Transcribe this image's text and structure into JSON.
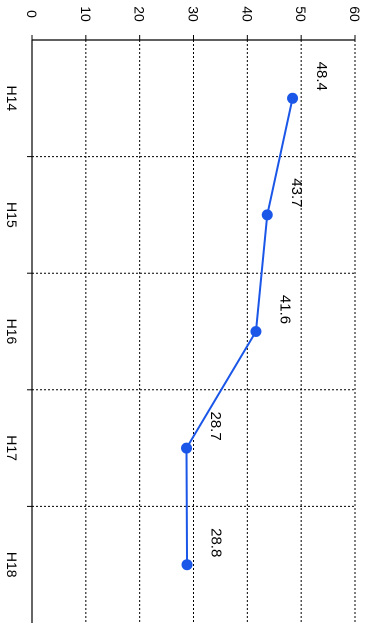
{
  "chart_data": {
    "type": "line",
    "categories": [
      "H14",
      "H15",
      "H16",
      "H17",
      "H18"
    ],
    "series": [
      {
        "values": [
          48.4,
          43.7,
          41.6,
          28.7,
          28.8
        ],
        "data_labels": [
          "48.4",
          "43.7",
          "41.6",
          "28.7",
          "28.8"
        ]
      }
    ],
    "value_axis": {
      "min": 0,
      "max": 60,
      "ticks": [
        0,
        10,
        20,
        30,
        40,
        50,
        60
      ],
      "tick_labels": [
        "0",
        "10",
        "20",
        "30",
        "40",
        "50",
        "60"
      ]
    },
    "orientation": "rotated 90 degrees clockwise",
    "grid": true,
    "grid_style": "dotted",
    "legend": false,
    "colors": {
      "line": "#1a56e8",
      "marker": "#1a56e8",
      "grid": "#000000",
      "axis": "#000000",
      "text": "#000000"
    }
  }
}
